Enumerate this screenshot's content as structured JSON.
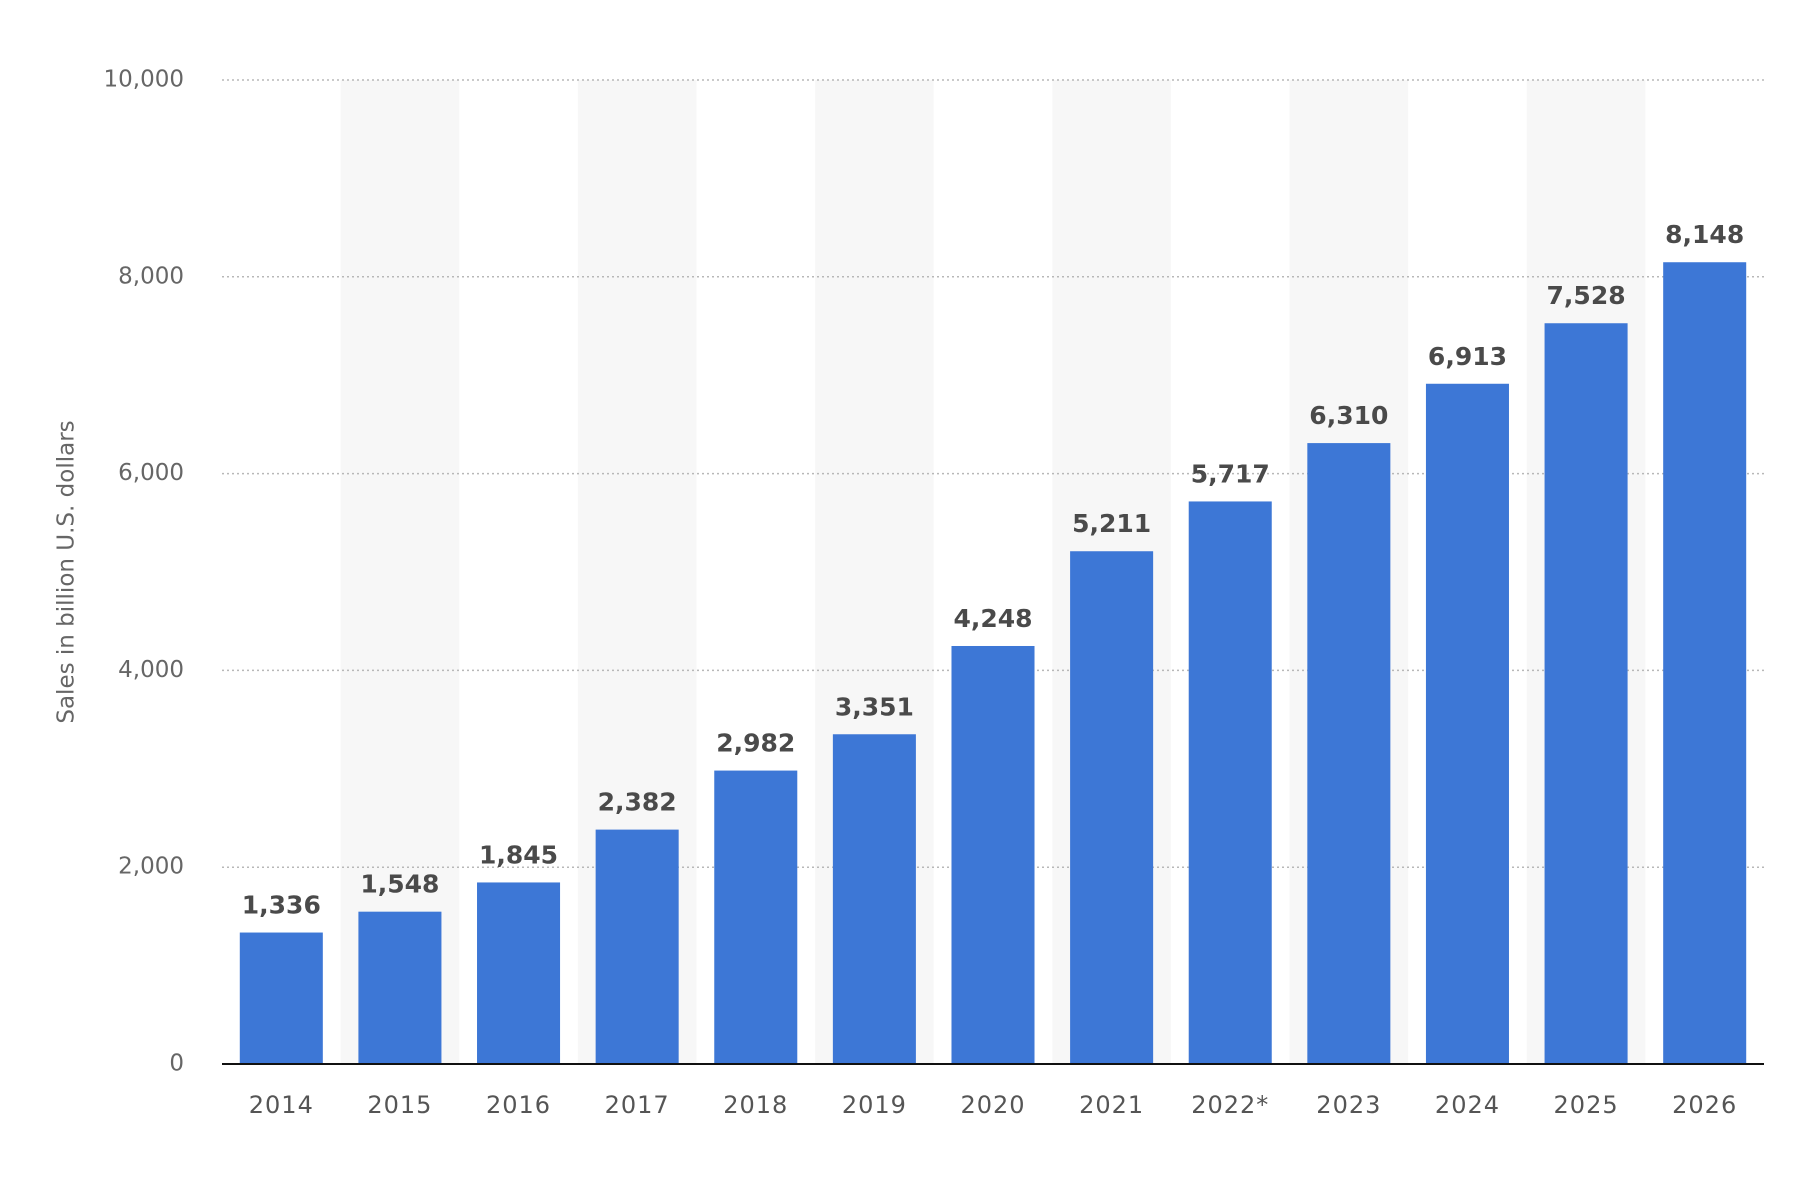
{
  "chart_data": {
    "type": "bar",
    "y_label": "Sales in billion U.S. dollars",
    "categories": [
      "2014",
      "2015",
      "2016",
      "2017",
      "2018",
      "2019",
      "2020",
      "2021",
      "2022*",
      "2023",
      "2024",
      "2025",
      "2026"
    ],
    "values": [
      1336,
      1548,
      1845,
      2382,
      2982,
      3351,
      4248,
      5211,
      5717,
      6310,
      6913,
      7528,
      8148
    ],
    "value_labels": [
      "1,336",
      "1,548",
      "1,845",
      "2,382",
      "2,982",
      "3,351",
      "4,248",
      "5,211",
      "5,717",
      "6,310",
      "6,913",
      "7,528",
      "8,148"
    ],
    "color": "#3d77d6",
    "ylim": [
      0,
      10000
    ],
    "yticks": [
      0,
      {
        "value": 2000,
        "label": "2,000"
      },
      {
        "value": 4000,
        "label": "4,000"
      },
      {
        "value": 6000,
        "label": "6,000"
      },
      {
        "value": 8000,
        "label": "8,000"
      },
      {
        "value": 10000,
        "label": "10,000"
      }
    ],
    "grid": true
  }
}
